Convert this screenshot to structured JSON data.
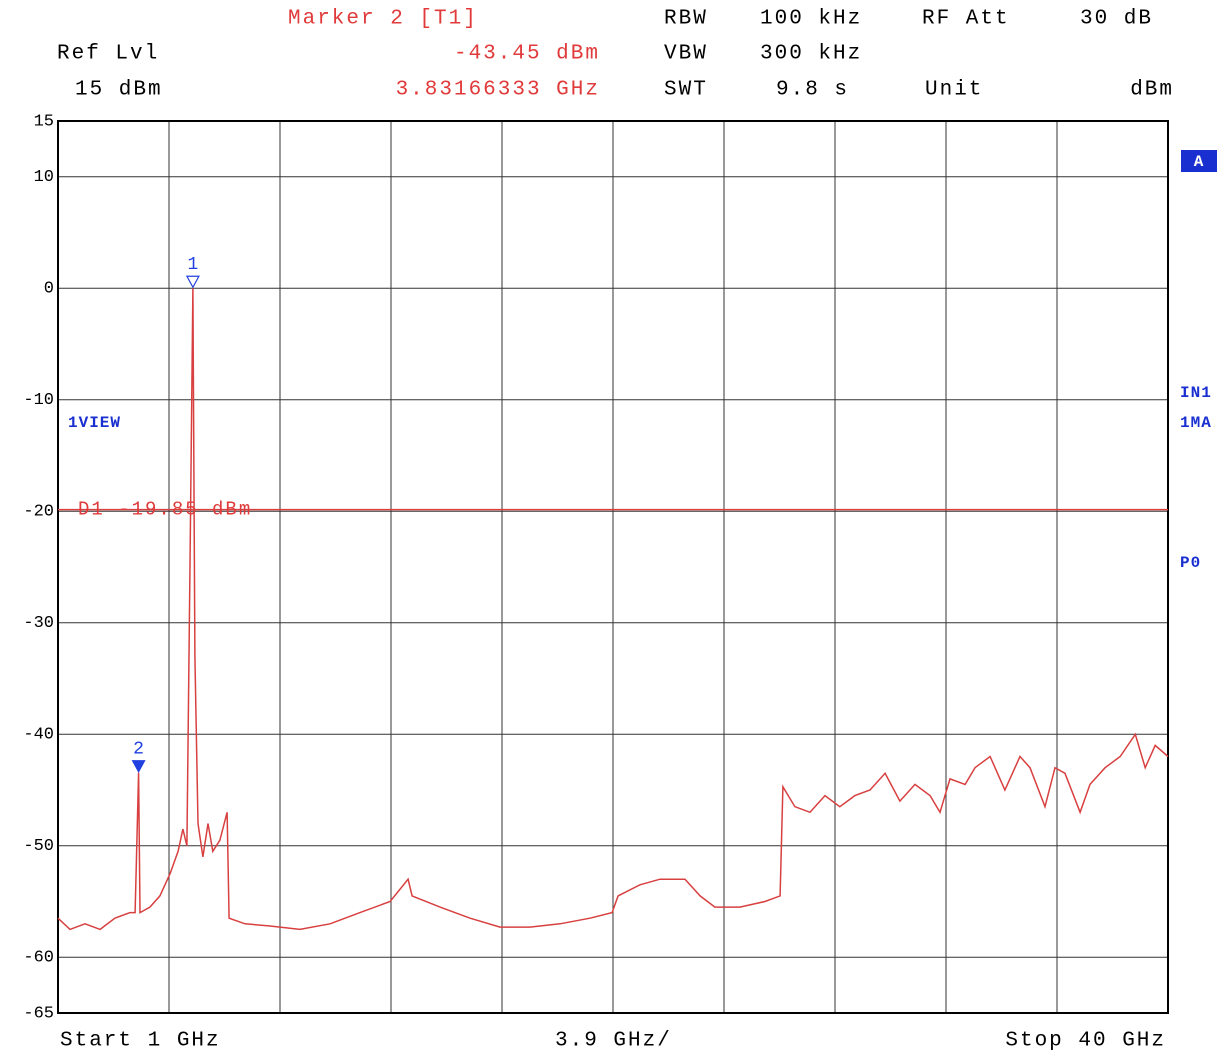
{
  "chart_data": {
    "type": "line",
    "header": {
      "marker_title": "Marker 2 [T1]",
      "marker_level": "-43.45 dBm",
      "marker_freq": "3.83166333 GHz",
      "rbw_label": "RBW",
      "rbw": "100 kHz",
      "vbw_label": "VBW",
      "vbw": "300 kHz",
      "swt_label": "SWT",
      "swt": "9.8 s",
      "rfatt_label": "RF Att",
      "rfatt": "30 dB",
      "ref_label": "Ref Lvl",
      "ref": "15 dBm",
      "unit_label": "Unit",
      "unit": "dBm"
    },
    "footer": {
      "start": "Start 1 GHz",
      "span": "3.9 GHz/",
      "stop": "Stop 40 GHz"
    },
    "side_labels": {
      "trace": "A",
      "input": "IN1",
      "mode": "1MA",
      "preamp": "P0",
      "view": "1VIEW"
    },
    "color": "#d84040",
    "x": [
      1.0,
      1.42,
      1.95,
      2.48,
      3.0,
      3.53,
      3.71,
      3.83166333,
      3.88,
      4.23,
      4.58,
      4.94,
      5.22,
      5.39,
      5.53,
      5.64,
      5.74,
      5.81,
      5.92,
      6.09,
      6.27,
      6.44,
      6.69,
      6.94,
      7.01,
      7.57,
      8.45,
      9.5,
      10.56,
      11.61,
      12.67,
      13.3,
      13.44,
      14.42,
      15.48,
      16.53,
      17.58,
      18.64,
      19.69,
      20.47,
      20.68,
      21.45,
      22.15,
      23.03,
      23.56,
      24.08,
      24.96,
      25.84,
      26.37,
      26.47,
      26.89,
      27.42,
      27.95,
      28.47,
      29.0,
      29.53,
      30.06,
      30.58,
      31.11,
      31.64,
      31.99,
      32.34,
      32.87,
      33.22,
      33.75,
      34.27,
      34.8,
      35.15,
      35.68,
      36.03,
      36.38,
      36.91,
      37.26,
      37.79,
      38.32,
      38.85,
      39.2,
      39.55,
      40.0
    ],
    "values": [
      -56.5,
      -57.5,
      -57.0,
      -57.5,
      -56.5,
      -56.0,
      -56.0,
      -43.45,
      -56.0,
      -55.5,
      -54.5,
      -52.5,
      -50.5,
      -48.5,
      -50.0,
      -24.0,
      0.0,
      -33.0,
      -48.0,
      -51.0,
      -48.0,
      -50.5,
      -49.5,
      -47.0,
      -56.5,
      -57.0,
      -57.2,
      -57.5,
      -57.0,
      -56.0,
      -55.0,
      -53.0,
      -54.5,
      -55.5,
      -56.5,
      -57.3,
      -57.3,
      -57.0,
      -56.5,
      -56.0,
      -54.5,
      -53.5,
      -53.0,
      -53.0,
      -54.5,
      -55.5,
      -55.5,
      -55.0,
      -54.5,
      -44.7,
      -46.5,
      -47.0,
      -45.5,
      -46.5,
      -45.5,
      -45.0,
      -43.5,
      -46.0,
      -44.5,
      -45.5,
      -47.0,
      -44.0,
      -44.5,
      -43.0,
      -42.0,
      -45.0,
      -42.0,
      -43.0,
      -46.5,
      -43.0,
      -43.5,
      -47.0,
      -44.5,
      -43.0,
      -42.0,
      -40.0,
      -43.0,
      -41.0,
      -42.0
    ],
    "markers": [
      {
        "label": "1",
        "x": 5.74,
        "y": 0.0,
        "filled": false
      },
      {
        "label": "2",
        "x": 3.83166333,
        "y": -43.45,
        "filled": true
      }
    ],
    "marker_color": "#2040e0",
    "display_line": {
      "label": "D1 -19.85 dBm",
      "value": -19.85
    },
    "xlim": [
      1,
      40
    ],
    "xticks": [
      1,
      4.9,
      8.8,
      12.7,
      16.6,
      20.5,
      24.4,
      28.3,
      32.2,
      36.1,
      40
    ],
    "ylim": [
      -65,
      15
    ],
    "yticks": [
      15,
      10,
      0,
      -10,
      -20,
      -30,
      -40,
      -50,
      -60,
      -65
    ],
    "grid": true
  }
}
